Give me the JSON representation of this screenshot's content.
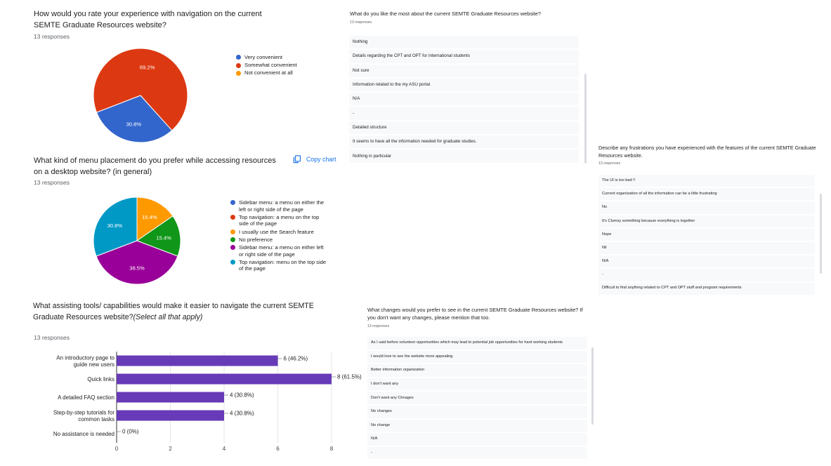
{
  "q1": {
    "title": "How would you rate your experience with navigation on the current SEMTE Graduate Resources website?",
    "responses": "13 responses"
  },
  "q2": {
    "title": "What kind of menu placement do you prefer while accessing resources on a desktop website? (in general)",
    "responses": "13 responses",
    "copy_label": "Copy chart"
  },
  "q3": {
    "title": "What assisting tools/ capabilities would make it easier to navigate the current SEMTE Graduate Resources website?",
    "title_italic": "(Select all that apply)",
    "responses": "13 responses"
  },
  "q4": {
    "title": "What do you like the most about the current SEMTE Graduate Resources website?",
    "responses": "13 responses",
    "items": [
      "Nothing",
      "Details regarding the CPT and OPT for international students",
      "Not sure",
      "Information related to the my ASU portal",
      "N/A",
      "-",
      "Detailed structure",
      "It seems to have all the information needed for graduate studies.",
      "Nothing in particular"
    ]
  },
  "q5": {
    "title": "Describe any frustrations you have experienced with the features of the  current SEMTE Graduate Resources website.",
    "responses": "13 responses",
    "items": [
      "The UI is too bad !!",
      "Current organization of all the information can be a little frustrating",
      "No",
      "It's Clumsy something because everything is together",
      "Nope",
      "Nil",
      "N/A",
      "-",
      "Difficult to find anything related to CPT and OPT stuff and program requirements"
    ]
  },
  "q6": {
    "title": "What changes would you prefer to see in the  current SEMTE Graduate Resources website? If you don't want any changes, please mention that too.",
    "responses": "13 responses",
    "items": [
      "As I said before volunteer opportunities which may lead to potential job opportunities for hard working students",
      "I would love to see the website more appealing.",
      "Better information organization",
      "I don't want any",
      "Don't want any Chnages",
      "No changes",
      "No change",
      "N/A",
      "-"
    ]
  },
  "chart_data": [
    {
      "type": "pie",
      "labels": [
        "Very convenient",
        "Somewhat convenient",
        "Not convenient at all"
      ],
      "values": [
        30.8,
        69.2,
        0
      ],
      "colors": [
        "#3366cc",
        "#dc3912",
        "#ff9900"
      ],
      "data_labels": [
        "30.8%",
        "69.2%",
        ""
      ]
    },
    {
      "type": "pie",
      "labels": [
        "Sidebar menu: a menu on either the left or right side of the page",
        "Top navigation: a menu on the top side of the page",
        "I usually use the Search feature",
        "No preference",
        "Sidebar menu: a menu on either left or right side of the page",
        "Top navigation: menu on the top side of the page"
      ],
      "values": [
        0,
        0,
        15.4,
        15.4,
        38.5,
        30.8
      ],
      "colors": [
        "#3366cc",
        "#dc3912",
        "#ff9900",
        "#109618",
        "#990099",
        "#0099c6"
      ],
      "data_labels": [
        "",
        "",
        "15.4%",
        "15.4%",
        "38.5%",
        "30.8%"
      ]
    },
    {
      "type": "bar",
      "orientation": "horizontal",
      "categories": [
        "An introductory page to guide new users",
        "Quick links",
        "A detailed FAQ section",
        "Step-by-step tutorials for common tasks",
        "No assistance is needed"
      ],
      "values": [
        6,
        8,
        4,
        4,
        0
      ],
      "data_labels": [
        "6 (46.2%)",
        "8 (61.5%)",
        "4 (30.8%)",
        "4 (30.8%)",
        "0 (0%)"
      ],
      "xlim": [
        0,
        8
      ],
      "xticks": [
        "0",
        "2",
        "4",
        "6",
        "8"
      ],
      "color": "#673ab7"
    }
  ]
}
